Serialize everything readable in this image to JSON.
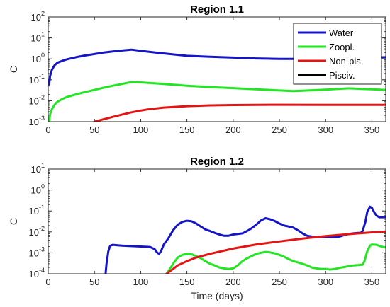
{
  "chart_data": [
    {
      "type": "line",
      "title": "Region 1.1",
      "xlabel": "",
      "ylabel": "C",
      "xlim": [
        0,
        365
      ],
      "yscale": "log",
      "ylim": [
        0.001,
        100
      ],
      "xticks": [
        "0",
        "50",
        "100",
        "150",
        "200",
        "250",
        "300",
        "350"
      ],
      "ytick_exponents": [
        "-3",
        "-2",
        "-1",
        "0",
        "1",
        "2"
      ],
      "grid": false,
      "legend": "top-right",
      "series": [
        {
          "name": "Water",
          "color": "#1515c8",
          "x": [
            1,
            2,
            4,
            7,
            10,
            15,
            20,
            30,
            40,
            50,
            60,
            70,
            80,
            90,
            100,
            120,
            150,
            175,
            200,
            225,
            250,
            275,
            300,
            325,
            350,
            365
          ],
          "y": [
            0.06,
            0.15,
            0.3,
            0.5,
            0.65,
            0.8,
            0.95,
            1.2,
            1.45,
            1.7,
            2.0,
            2.25,
            2.5,
            2.75,
            2.4,
            1.9,
            1.4,
            1.25,
            1.15,
            1.05,
            1.0,
            1.0,
            1.05,
            1.1,
            1.15,
            1.2
          ]
        },
        {
          "name": "Zoopl.",
          "color": "#22e622",
          "x": [
            1,
            2,
            4,
            7,
            10,
            15,
            20,
            30,
            40,
            50,
            60,
            70,
            80,
            90,
            100,
            120,
            150,
            175,
            200,
            225,
            250,
            265,
            275,
            300,
            325,
            350,
            365
          ],
          "y": [
            0.001,
            0.0022,
            0.004,
            0.0065,
            0.009,
            0.012,
            0.015,
            0.02,
            0.026,
            0.033,
            0.042,
            0.052,
            0.063,
            0.078,
            0.075,
            0.065,
            0.052,
            0.045,
            0.04,
            0.035,
            0.031,
            0.029,
            0.03,
            0.034,
            0.039,
            0.035,
            0.033
          ]
        },
        {
          "name": "Non-pis.",
          "color": "#e51414",
          "x": [
            50,
            60,
            70,
            80,
            90,
            100,
            110,
            125,
            150,
            175,
            200,
            250,
            300,
            365
          ],
          "y": [
            0.001,
            0.0013,
            0.0017,
            0.0022,
            0.0028,
            0.0034,
            0.004,
            0.0047,
            0.0055,
            0.006,
            0.0062,
            0.0064,
            0.0063,
            0.0063
          ]
        },
        {
          "name": "Pisciv.",
          "color": "#000000",
          "x": [],
          "y": []
        }
      ]
    },
    {
      "type": "line",
      "title": "Region 1.2",
      "xlabel": "Time (days)",
      "ylabel": "C",
      "xlim": [
        0,
        365
      ],
      "yscale": "log",
      "ylim": [
        0.0001,
        10
      ],
      "xticks": [
        "0",
        "50",
        "100",
        "150",
        "200",
        "250",
        "300",
        "350"
      ],
      "ytick_exponents": [
        "-4",
        "-3",
        "-2",
        "-1",
        "0",
        "1"
      ],
      "grid": false,
      "legend": "none",
      "series": [
        {
          "name": "Water",
          "color": "#1515c8",
          "x": [
            62,
            63,
            65,
            67,
            70,
            75,
            80,
            90,
            100,
            110,
            115,
            118,
            120,
            122,
            125,
            130,
            135,
            140,
            145,
            150,
            155,
            160,
            165,
            170,
            175,
            180,
            185,
            190,
            195,
            200,
            205,
            210,
            215,
            220,
            225,
            230,
            235,
            240,
            245,
            250,
            255,
            260,
            265,
            270,
            275,
            280,
            285,
            290,
            295,
            300,
            305,
            310,
            315,
            320,
            325,
            330,
            335,
            338,
            340,
            343,
            345,
            348,
            350,
            353,
            355,
            358,
            360,
            365
          ],
          "y": [
            0.0001,
            0.0003,
            0.0012,
            0.0022,
            0.0024,
            0.0023,
            0.0022,
            0.0021,
            0.002,
            0.0019,
            0.0015,
            0.001,
            0.0009,
            0.0012,
            0.0025,
            0.005,
            0.012,
            0.022,
            0.03,
            0.034,
            0.032,
            0.025,
            0.018,
            0.013,
            0.011,
            0.009,
            0.0075,
            0.0065,
            0.0065,
            0.0075,
            0.008,
            0.0085,
            0.011,
            0.015,
            0.022,
            0.035,
            0.045,
            0.04,
            0.033,
            0.025,
            0.02,
            0.018,
            0.016,
            0.012,
            0.0085,
            0.0065,
            0.006,
            0.0055,
            0.0055,
            0.006,
            0.0055,
            0.0055,
            0.006,
            0.007,
            0.008,
            0.0085,
            0.009,
            0.009,
            0.011,
            0.03,
            0.09,
            0.16,
            0.14,
            0.08,
            0.06,
            0.05,
            0.05,
            0.05
          ]
        },
        {
          "name": "Zoopl.",
          "color": "#22e622",
          "x": [
            128,
            132,
            136,
            140,
            145,
            150,
            155,
            160,
            165,
            170,
            175,
            180,
            185,
            190,
            195,
            200,
            205,
            210,
            215,
            220,
            225,
            230,
            235,
            240,
            245,
            250,
            255,
            260,
            265,
            270,
            275,
            280,
            285,
            290,
            295,
            300,
            305,
            310,
            315,
            320,
            325,
            330,
            335,
            340,
            342,
            345,
            348,
            350,
            355,
            360,
            365
          ],
          "y": [
            0.0001,
            0.00018,
            0.00035,
            0.0006,
            0.0008,
            0.0009,
            0.00085,
            0.0007,
            0.00055,
            0.0004,
            0.0003,
            0.00025,
            0.0002,
            0.00018,
            0.00017,
            0.00018,
            0.00025,
            0.0004,
            0.00055,
            0.0007,
            0.0009,
            0.001,
            0.0011,
            0.00105,
            0.00095,
            0.0008,
            0.00065,
            0.0005,
            0.0004,
            0.00035,
            0.0003,
            0.00025,
            0.0002,
            0.00018,
            0.00017,
            0.00017,
            0.00016,
            0.00017,
            0.00019,
            0.00021,
            0.00023,
            0.00025,
            0.00026,
            0.00027,
            0.0004,
            0.0012,
            0.0022,
            0.0025,
            0.0024,
            0.002,
            0.0018
          ]
        },
        {
          "name": "Non-pis.",
          "color": "#e51414",
          "x": [
            128,
            135,
            140,
            150,
            160,
            175,
            200,
            225,
            250,
            275,
            300,
            325,
            350,
            365
          ],
          "y": [
            0.0001,
            0.00017,
            0.00025,
            0.0004,
            0.0006,
            0.0009,
            0.0016,
            0.0025,
            0.0035,
            0.0048,
            0.0063,
            0.0078,
            0.0095,
            0.0105
          ]
        },
        {
          "name": "Pisciv.",
          "color": "#000000",
          "x": [],
          "y": []
        }
      ]
    }
  ]
}
